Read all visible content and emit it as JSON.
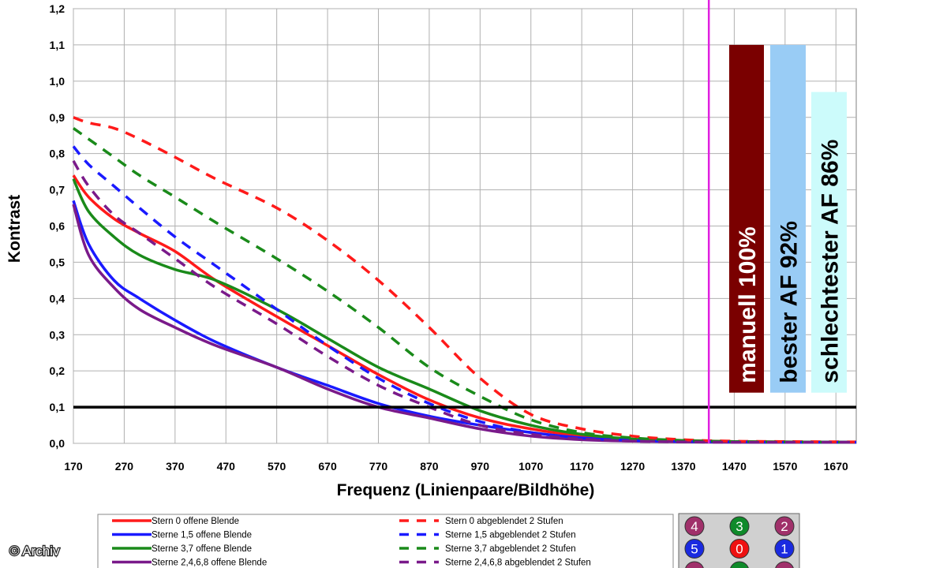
{
  "chart_data": {
    "type": "line",
    "xlabel": "Frequenz (Linienpaare/Bildhöhe)",
    "ylabel": "Kontrast",
    "xlim": [
      170,
      1710
    ],
    "ylim": [
      0,
      1.2
    ],
    "x_ticks": [
      "170",
      "270",
      "370",
      "470",
      "570",
      "670",
      "770",
      "870",
      "970",
      "1070",
      "1170",
      "1270",
      "1370",
      "1470",
      "1570",
      "1670"
    ],
    "y_ticks": [
      "0,0",
      "0,1",
      "0,2",
      "0,3",
      "0,4",
      "0,5",
      "0,6",
      "0,7",
      "0,8",
      "0,9",
      "1,0",
      "1,1",
      "1,2"
    ],
    "grid": true,
    "threshold": {
      "y": 0.1,
      "color": "#000000"
    },
    "vertical_marker": {
      "x": 1420,
      "color": "#e020e0"
    },
    "series": [
      {
        "name": "Stern 0 offene Blende",
        "color": "#ff1a1a",
        "style": "solid",
        "x": [
          170,
          200,
          250,
          300,
          370,
          450,
          570,
          670,
          770,
          870,
          970,
          1070,
          1170,
          1270,
          1370,
          1470,
          1570,
          1710
        ],
        "y": [
          0.74,
          0.68,
          0.62,
          0.58,
          0.53,
          0.45,
          0.35,
          0.27,
          0.19,
          0.12,
          0.07,
          0.04,
          0.02,
          0.01,
          0.008,
          0.005,
          0.004,
          0.003
        ]
      },
      {
        "name": "Sterne 1,5 offene Blende",
        "color": "#1a1aff",
        "style": "solid",
        "x": [
          170,
          200,
          250,
          300,
          370,
          450,
          570,
          670,
          770,
          870,
          970,
          1070,
          1170,
          1270,
          1370,
          1470,
          1570,
          1710
        ],
        "y": [
          0.67,
          0.55,
          0.45,
          0.4,
          0.34,
          0.28,
          0.21,
          0.16,
          0.11,
          0.075,
          0.05,
          0.03,
          0.015,
          0.008,
          0.005,
          0.004,
          0.003,
          0.003
        ]
      },
      {
        "name": "Sterne 3,7 offene Blende",
        "color": "#1a8a1a",
        "style": "solid",
        "x": [
          170,
          200,
          250,
          300,
          370,
          450,
          570,
          670,
          770,
          870,
          970,
          1070,
          1170,
          1270,
          1370,
          1470,
          1570,
          1710
        ],
        "y": [
          0.73,
          0.64,
          0.57,
          0.52,
          0.48,
          0.45,
          0.37,
          0.29,
          0.21,
          0.15,
          0.09,
          0.05,
          0.025,
          0.012,
          0.006,
          0.004,
          0.003,
          0.003
        ]
      },
      {
        "name": "Sterne 2,4,6,8 offene Blende",
        "color": "#7a1a8a",
        "style": "solid",
        "x": [
          170,
          200,
          250,
          300,
          370,
          450,
          570,
          670,
          770,
          870,
          970,
          1070,
          1170,
          1270,
          1370,
          1470,
          1570,
          1710
        ],
        "y": [
          0.66,
          0.52,
          0.43,
          0.37,
          0.32,
          0.27,
          0.21,
          0.15,
          0.1,
          0.07,
          0.04,
          0.02,
          0.01,
          0.006,
          0.004,
          0.003,
          0.003,
          0.003
        ]
      },
      {
        "name": "Stern 0 abgeblendet 2 Stufen",
        "color": "#ff1a1a",
        "style": "dashed",
        "x": [
          170,
          200,
          250,
          300,
          370,
          450,
          570,
          670,
          770,
          870,
          970,
          1070,
          1170,
          1270,
          1370,
          1470,
          1570,
          1710
        ],
        "y": [
          0.9,
          0.885,
          0.87,
          0.84,
          0.79,
          0.73,
          0.65,
          0.56,
          0.45,
          0.32,
          0.18,
          0.08,
          0.04,
          0.02,
          0.01,
          0.006,
          0.005,
          0.004
        ]
      },
      {
        "name": "Sterne 1,5 abgeblendet 2 Stufen",
        "color": "#1a1aff",
        "style": "dashed",
        "x": [
          170,
          200,
          250,
          300,
          370,
          450,
          570,
          670,
          770,
          870,
          970,
          1070,
          1170,
          1270,
          1370,
          1470,
          1570,
          1710
        ],
        "y": [
          0.82,
          0.77,
          0.71,
          0.65,
          0.57,
          0.49,
          0.37,
          0.27,
          0.18,
          0.11,
          0.06,
          0.03,
          0.015,
          0.008,
          0.005,
          0.004,
          0.003,
          0.003
        ]
      },
      {
        "name": "Sterne 3,7 abgeblendet 2 Stufen",
        "color": "#1a8a1a",
        "style": "dashed",
        "x": [
          170,
          200,
          250,
          300,
          370,
          450,
          570,
          670,
          770,
          870,
          970,
          1070,
          1170,
          1270,
          1370,
          1470,
          1570,
          1710
        ],
        "y": [
          0.87,
          0.84,
          0.79,
          0.74,
          0.68,
          0.61,
          0.51,
          0.42,
          0.32,
          0.21,
          0.13,
          0.065,
          0.03,
          0.015,
          0.008,
          0.005,
          0.004,
          0.003
        ]
      },
      {
        "name": "Sterne 2,4,6,8 abgeblendet 2 Stufen",
        "color": "#7a1a8a",
        "style": "dashed",
        "x": [
          170,
          200,
          250,
          300,
          370,
          450,
          570,
          670,
          770,
          870,
          970,
          1070,
          1170,
          1270,
          1370,
          1470,
          1570,
          1710
        ],
        "y": [
          0.78,
          0.71,
          0.63,
          0.58,
          0.51,
          0.43,
          0.33,
          0.24,
          0.16,
          0.1,
          0.05,
          0.025,
          0.012,
          0.006,
          0.004,
          0.003,
          0.003,
          0.003
        ]
      }
    ],
    "bars": [
      {
        "label": "manuell 100%",
        "value": 1.1,
        "color": "#7a0000",
        "text_color": "#ffffff"
      },
      {
        "label": "bester AF 92%",
        "value": 1.1,
        "color": "#99ccf5",
        "text_color": "#000000"
      },
      {
        "label": "schlechtester AF 86%",
        "value": 0.97,
        "color": "#ccfbfb",
        "text_color": "#000000"
      }
    ],
    "legend_position": "bottom"
  },
  "star_markers": [
    {
      "number": "4",
      "color": "#a0306a"
    },
    {
      "number": "3",
      "color": "#0f8a2a"
    },
    {
      "number": "2",
      "color": "#a0306a"
    },
    {
      "number": "5",
      "color": "#1a2ae0"
    },
    {
      "number": "0",
      "color": "#ee1111"
    },
    {
      "number": "1",
      "color": "#1a2ae0"
    },
    {
      "number": "",
      "color": "#a0306a"
    },
    {
      "number": "",
      "color": "#0f8a2a"
    },
    {
      "number": "",
      "color": "#a0306a"
    }
  ],
  "copyright": "© Archiv"
}
